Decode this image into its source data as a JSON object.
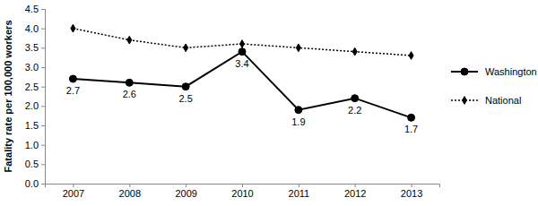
{
  "chart_data": {
    "type": "line",
    "y_label": "Fatality rate per 100,000 workers",
    "categories": [
      "2007",
      "2008",
      "2009",
      "2010",
      "2011",
      "2012",
      "2013"
    ],
    "series": [
      {
        "name": "Washington",
        "color": "#000000",
        "marker": "circle",
        "line_style": "solid",
        "data_labels": true,
        "values": [
          2.7,
          2.6,
          2.5,
          3.4,
          1.9,
          2.2,
          1.7
        ]
      },
      {
        "name": "National",
        "color": "#000000",
        "marker": "diamond",
        "line_style": "dotted",
        "data_labels": false,
        "values": [
          4.0,
          3.7,
          3.5,
          3.6,
          3.5,
          3.4,
          3.3
        ]
      }
    ],
    "ylim": [
      0,
      4.5
    ],
    "yticks": [
      {
        "value": 0,
        "label": "0.0"
      },
      0.5,
      {
        "value": 1,
        "label": "1.0"
      },
      1.5,
      {
        "value": 2,
        "label": "2.0"
      },
      2.5,
      {
        "value": 3,
        "label": "3.0"
      },
      3.5,
      {
        "value": 4,
        "label": "4.0"
      },
      4.5
    ],
    "grid": false,
    "legend": "right"
  }
}
